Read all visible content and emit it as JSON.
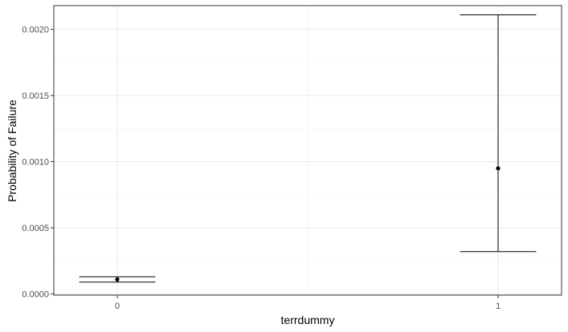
{
  "chart_data": {
    "type": "scatter",
    "xlabel": "terrdummy",
    "ylabel": "Probability of Failure",
    "categories": [
      "0",
      "1"
    ],
    "points": [
      {
        "x": "0",
        "y": 0.00011,
        "lower": 9e-05,
        "upper": 0.00013
      },
      {
        "x": "1",
        "y": 0.00095,
        "lower": 0.00032,
        "upper": 0.00211
      }
    ],
    "y_ticks": [
      "0.0000",
      "0.0005",
      "0.0010",
      "0.0015",
      "0.0020"
    ],
    "y_tick_values": [
      0,
      0.0005,
      0.001,
      0.0015,
      0.002
    ],
    "ylim": [
      -8.6e-06,
      0.0021795
    ],
    "error_bars": true,
    "grid": true,
    "legend": "none"
  }
}
